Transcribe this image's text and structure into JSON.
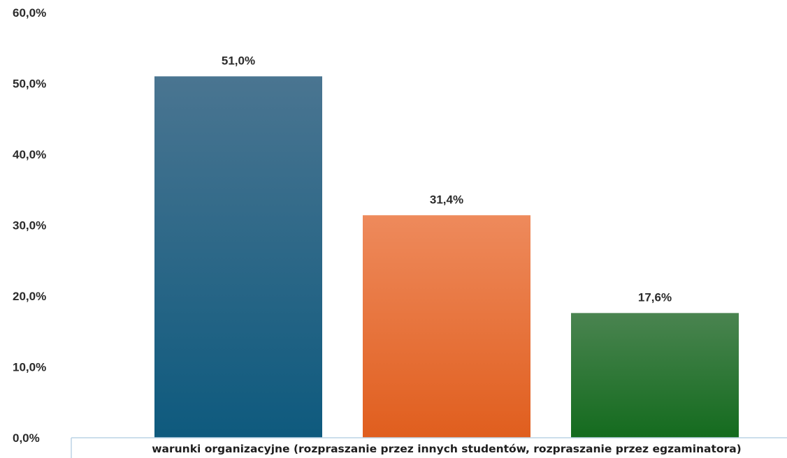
{
  "chart_data": {
    "type": "bar",
    "categories": [
      "warunki organizacyjne (rozpraszanie przez innych studentów, rozpraszanie przez egzaminatora)"
    ],
    "series": [
      {
        "values": [
          51.0
        ],
        "color": "#0e5a7e",
        "color_light": "#4a7591",
        "label": "51,0%"
      },
      {
        "values": [
          31.4
        ],
        "color": "#e05e1e",
        "color_light": "#ee8a5c",
        "label": "31,4%"
      },
      {
        "values": [
          17.6
        ],
        "color": "#146b1e",
        "color_light": "#4a8450",
        "label": "17,6%"
      }
    ],
    "y_ticks": [
      "0,0%",
      "10,0%",
      "20,0%",
      "30,0%",
      "40,0%",
      "50,0%",
      "60,0%"
    ],
    "ylim": [
      0,
      60
    ],
    "title": "",
    "xlabel": "",
    "ylabel": "",
    "grid": false,
    "legend": "none"
  }
}
